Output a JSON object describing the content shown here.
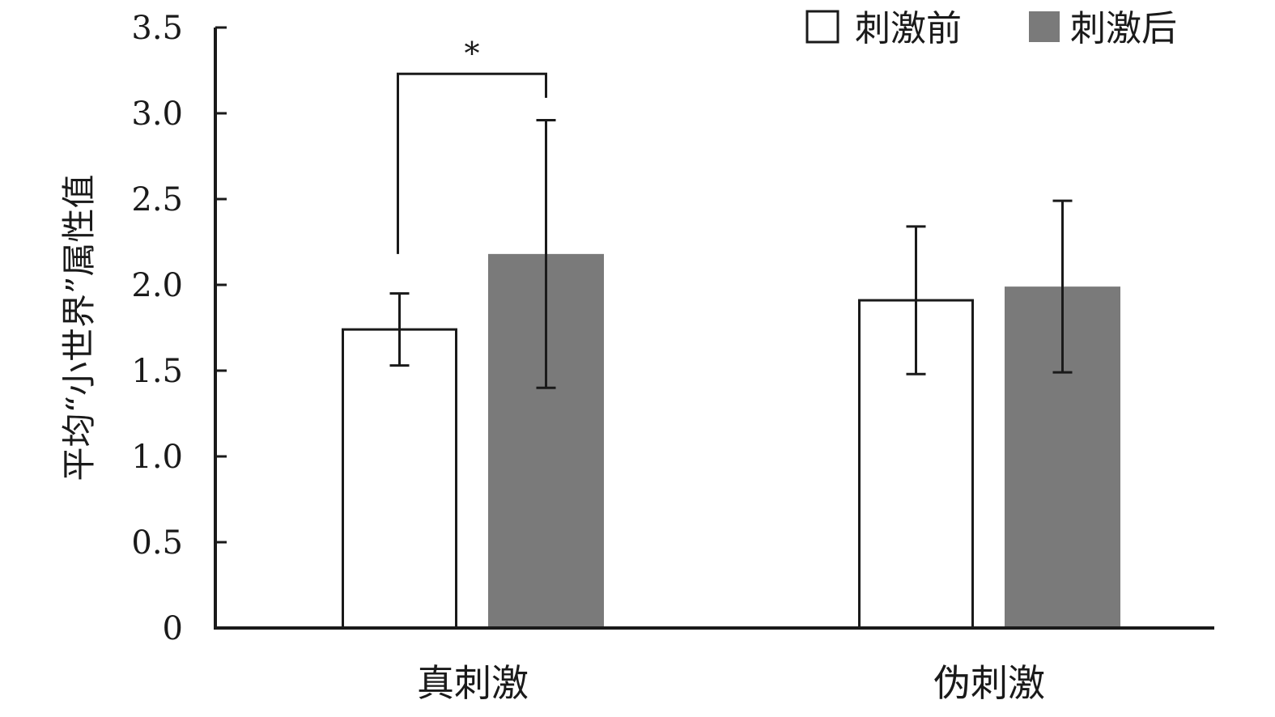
{
  "chart_data": {
    "type": "bar",
    "ylabel": "平均“小世界”属性值",
    "xlabel": "",
    "ylim": [
      0,
      3.5
    ],
    "yticks": [
      "0",
      "0.5",
      "1.0",
      "1.5",
      "2.0",
      "2.5",
      "3.0",
      "3.5"
    ],
    "categories": [
      "真刺激",
      "伪刺激"
    ],
    "series": [
      {
        "name": "刺激前",
        "color": "#ffffff",
        "values": [
          1.74,
          1.91
        ],
        "error": [
          0.21,
          0.43
        ]
      },
      {
        "name": "刺激后",
        "color": "#7a7a7a",
        "values": [
          2.18,
          1.99
        ],
        "error": [
          0.78,
          0.5
        ]
      }
    ],
    "legend_position": "top-right",
    "annotations": [
      {
        "category": "真刺激",
        "text": "*"
      }
    ],
    "grid": false
  }
}
